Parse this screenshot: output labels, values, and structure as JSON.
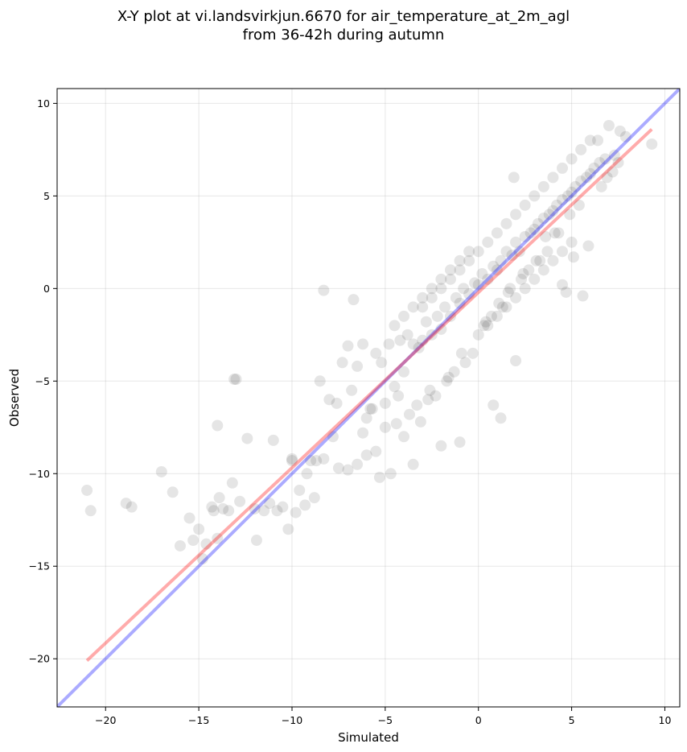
{
  "chart_data": {
    "type": "scatter",
    "title_line1": "X-Y plot at vi.landsvirkjun.6670 for air_temperature_at_2m_agl",
    "title_line2": "from 36-42h during autumn",
    "xlabel": "Simulated",
    "ylabel": "Observed",
    "xlim": [
      -22.6,
      10.8
    ],
    "ylim": [
      -22.6,
      10.8
    ],
    "xticks": [
      -20,
      -15,
      -10,
      -5,
      0,
      5,
      10
    ],
    "yticks": [
      -20,
      -15,
      -10,
      -5,
      0,
      5,
      10
    ],
    "xtick_labels": [
      "−20",
      "−15",
      "−10",
      "−5",
      "0",
      "5",
      "10"
    ],
    "ytick_labels": [
      "−20",
      "−15",
      "−10",
      "−5",
      "0",
      "5",
      "10"
    ],
    "grid": true,
    "marker_color": "#000000",
    "identity_line": {
      "color": "#0000ff",
      "x": [
        -22.6,
        10.8
      ],
      "y": [
        -22.6,
        10.8
      ]
    },
    "fit_line": {
      "color": "#ff0000",
      "x": [
        -21.0,
        9.3
      ],
      "y": [
        -20.1,
        8.6
      ]
    },
    "points": {
      "x": [
        -21.0,
        -20.8,
        -18.9,
        -18.6,
        -17.0,
        -16.4,
        -16.0,
        -15.5,
        -15.3,
        -15.0,
        -14.8,
        -14.6,
        -14.3,
        -14.2,
        -14.0,
        -13.9,
        -13.7,
        -13.4,
        -13.2,
        -13.1,
        -12.8,
        -12.4,
        -12.0,
        -11.9,
        -11.5,
        -11.2,
        -11.0,
        -10.8,
        -10.5,
        -10.2,
        -10.0,
        -9.8,
        -9.6,
        -9.3,
        -9.0,
        -8.8,
        -8.5,
        -8.3,
        -8.0,
        -7.8,
        -7.6,
        -7.3,
        -7.0,
        -6.8,
        -6.5,
        -6.2,
        -6.0,
        -5.7,
        -5.5,
        -5.2,
        -5.0,
        -4.8,
        -4.5,
        -4.2,
        -4.0,
        -3.8,
        -3.5,
        -3.2,
        -3.0,
        -2.8,
        -2.5,
        -2.2,
        -2.0,
        -1.8,
        -1.5,
        -1.2,
        -1.0,
        -0.8,
        -0.5,
        -0.2,
        0.0,
        0.2,
        0.5,
        0.8,
        1.0,
        1.2,
        1.5,
        1.8,
        2.0,
        2.2,
        2.5,
        2.8,
        3.0,
        3.2,
        3.5,
        3.8,
        4.0,
        4.2,
        4.5,
        4.8,
        5.0,
        5.2,
        5.5,
        5.8,
        6.0,
        6.2,
        6.5,
        6.8,
        7.0,
        7.3,
        7.6,
        7.9,
        9.3,
        -8.3,
        -13.0,
        -14.0,
        -6.7,
        -5.0,
        -4.0,
        -3.5,
        -2.0,
        -1.0,
        0.8,
        1.2,
        1.9,
        2.0,
        4.5,
        4.7,
        5.1,
        5.6,
        5.9,
        6.4,
        -10.0,
        -8.7,
        -9.2,
        -7.0,
        -6.0,
        -5.3,
        -4.7,
        -4.4,
        -3.7,
        -3.1,
        -2.7,
        -2.3,
        -1.7,
        -1.3,
        -0.7,
        -0.3,
        0.3,
        0.7,
        1.3,
        1.7,
        2.3,
        2.7,
        3.3,
        3.7,
        4.3,
        -3.0,
        -2.5,
        -2.0,
        -1.5,
        -1.0,
        -0.5,
        0.0,
        0.5,
        1.0,
        1.5,
        2.0,
        2.5,
        3.0,
        3.5,
        4.0,
        4.5,
        5.0,
        5.5,
        6.0,
        -4.5,
        -4.0,
        -3.5,
        -3.0,
        -2.5,
        -2.0,
        -1.5,
        -1.0,
        -0.5,
        0.0,
        0.5,
        1.0,
        1.5,
        2.0,
        2.5,
        3.0,
        3.5,
        4.0,
        4.5,
        5.0,
        -5.5,
        -6.5,
        -7.5,
        -5.8,
        -6.2,
        -4.3,
        -3.3,
        -2.6,
        -1.6,
        -0.9,
        0.4,
        1.1,
        1.6,
        2.4,
        3.1,
        3.6,
        4.1,
        4.9,
        5.4,
        6.6,
        6.9,
        7.2,
        7.5
      ],
      "y": [
        -10.9,
        -12.0,
        -11.6,
        -11.8,
        -9.9,
        -11.0,
        -13.9,
        -12.4,
        -13.6,
        -13.0,
        -14.6,
        -13.8,
        -11.8,
        -12.0,
        -13.5,
        -11.3,
        -11.9,
        -12.0,
        -10.5,
        -4.9,
        -11.5,
        -8.1,
        -11.9,
        -13.6,
        -12.0,
        -11.6,
        -8.2,
        -12.0,
        -11.8,
        -13.0,
        -9.3,
        -12.1,
        -10.9,
        -11.7,
        -9.3,
        -11.3,
        -5.0,
        -9.2,
        -6.0,
        -8.0,
        -6.2,
        -4.0,
        -3.1,
        -5.5,
        -4.2,
        -3.0,
        -7.0,
        -6.5,
        -3.5,
        -4.0,
        -6.2,
        -3.0,
        -5.3,
        -2.8,
        -4.5,
        -2.5,
        -3.0,
        -3.2,
        -2.8,
        -1.8,
        -2.5,
        -1.5,
        -2.2,
        -1.0,
        -1.5,
        -0.5,
        -0.8,
        0.0,
        -0.3,
        0.3,
        0.2,
        0.8,
        0.5,
        1.2,
        1.0,
        1.5,
        2.0,
        1.8,
        2.5,
        2.0,
        2.8,
        3.0,
        3.2,
        3.5,
        3.8,
        4.0,
        4.2,
        4.5,
        4.8,
        5.0,
        5.2,
        5.5,
        5.8,
        6.0,
        6.2,
        6.5,
        6.8,
        7.0,
        8.8,
        7.2,
        8.5,
        8.2,
        7.8,
        -0.1,
        -4.9,
        -7.4,
        -0.6,
        -7.5,
        -8.0,
        -9.5,
        -8.5,
        -8.3,
        -6.3,
        -7.0,
        6.0,
        -3.9,
        0.2,
        -0.2,
        1.7,
        -0.4,
        2.3,
        8.0,
        -9.2,
        -9.3,
        -10.0,
        -9.8,
        -9.0,
        -10.2,
        -10.0,
        -7.3,
        -6.8,
        -7.2,
        -6.0,
        -5.8,
        -5.0,
        -4.5,
        -4.0,
        -3.5,
        -2.0,
        -1.5,
        -1.0,
        0.0,
        0.5,
        1.0,
        1.5,
        2.0,
        3.0,
        -1.0,
        -0.5,
        0.0,
        0.5,
        1.0,
        1.5,
        2.0,
        2.5,
        3.0,
        3.5,
        4.0,
        4.5,
        5.0,
        5.5,
        6.0,
        6.5,
        7.0,
        7.5,
        8.0,
        -2.0,
        -1.5,
        -1.0,
        -0.5,
        0.0,
        0.5,
        1.0,
        1.5,
        2.0,
        -2.5,
        -2.0,
        -1.5,
        -1.0,
        -0.5,
        0.0,
        0.5,
        1.0,
        1.5,
        2.0,
        2.5,
        -8.8,
        -9.5,
        -9.7,
        -6.5,
        -7.8,
        -5.8,
        -6.3,
        -5.5,
        -4.8,
        -3.5,
        -1.8,
        -0.8,
        -0.2,
        0.8,
        1.5,
        2.8,
        3.0,
        4.0,
        4.5,
        5.5,
        6.0,
        6.3,
        6.8
      ]
    }
  }
}
